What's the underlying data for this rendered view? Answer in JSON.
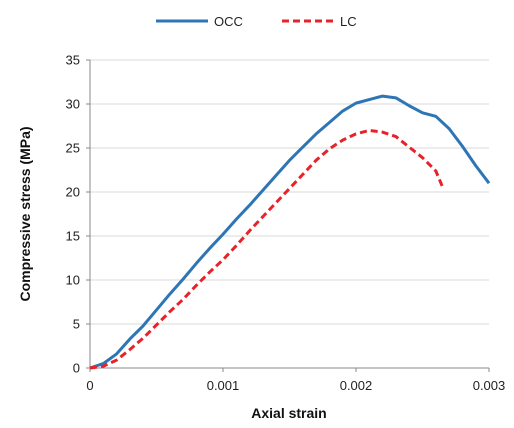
{
  "chart_data": {
    "type": "line",
    "title": "",
    "xlabel": "Axial strain",
    "ylabel": "Compressive stress (MPa)",
    "xlim": [
      0,
      0.003
    ],
    "ylim": [
      0,
      35
    ],
    "x_ticks": [
      0,
      0.001,
      0.002,
      0.003
    ],
    "x_tick_labels": [
      "0",
      "0.001",
      "0.002",
      "0.003"
    ],
    "y_ticks": [
      0,
      5,
      10,
      15,
      20,
      25,
      30,
      35
    ],
    "y_tick_labels": [
      "0",
      "5",
      "10",
      "15",
      "20",
      "25",
      "30",
      "35"
    ],
    "grid": "horizontal",
    "legend_position": "top-center",
    "series": [
      {
        "name": "OCC",
        "color": "#2e75b6",
        "dash": "solid",
        "points": [
          [
            0,
            0
          ],
          [
            0.0001,
            0.5
          ],
          [
            0.0002,
            1.6
          ],
          [
            0.0003,
            3.3
          ],
          [
            0.0004,
            4.8
          ],
          [
            0.0005,
            6.6
          ],
          [
            0.0006,
            8.4
          ],
          [
            0.0007,
            10.1
          ],
          [
            0.0008,
            11.9
          ],
          [
            0.0009,
            13.6
          ],
          [
            0.001,
            15.2
          ],
          [
            0.0011,
            16.9
          ],
          [
            0.0012,
            18.5
          ],
          [
            0.0013,
            20.2
          ],
          [
            0.0014,
            21.9
          ],
          [
            0.0015,
            23.6
          ],
          [
            0.0016,
            25.1
          ],
          [
            0.0017,
            26.6
          ],
          [
            0.0018,
            27.9
          ],
          [
            0.0019,
            29.2
          ],
          [
            0.002,
            30.1
          ],
          [
            0.0021,
            30.5
          ],
          [
            0.0022,
            30.9
          ],
          [
            0.0023,
            30.7
          ],
          [
            0.0024,
            29.8
          ],
          [
            0.0025,
            29.0
          ],
          [
            0.0026,
            28.6
          ],
          [
            0.0027,
            27.2
          ],
          [
            0.0028,
            25.2
          ],
          [
            0.0029,
            23.0
          ],
          [
            0.003,
            21.0
          ]
        ]
      },
      {
        "name": "LC",
        "color": "#e8222a",
        "dash": "dashed",
        "points": [
          [
            0,
            0
          ],
          [
            0.0001,
            0.2
          ],
          [
            0.0002,
            0.9
          ],
          [
            0.0003,
            2.1
          ],
          [
            0.0004,
            3.4
          ],
          [
            0.0005,
            4.9
          ],
          [
            0.0006,
            6.4
          ],
          [
            0.0007,
            7.8
          ],
          [
            0.0008,
            9.4
          ],
          [
            0.0009,
            10.9
          ],
          [
            0.001,
            12.3
          ],
          [
            0.0011,
            13.9
          ],
          [
            0.0012,
            15.6
          ],
          [
            0.0013,
            17.2
          ],
          [
            0.0014,
            18.8
          ],
          [
            0.0015,
            20.4
          ],
          [
            0.0016,
            22.0
          ],
          [
            0.0017,
            23.6
          ],
          [
            0.0018,
            24.9
          ],
          [
            0.0019,
            25.9
          ],
          [
            0.002,
            26.6
          ],
          [
            0.0021,
            27.0
          ],
          [
            0.0022,
            26.8
          ],
          [
            0.0023,
            26.3
          ],
          [
            0.0024,
            25.1
          ],
          [
            0.0025,
            23.9
          ],
          [
            0.0026,
            22.4
          ],
          [
            0.00265,
            20.6
          ]
        ]
      }
    ]
  }
}
